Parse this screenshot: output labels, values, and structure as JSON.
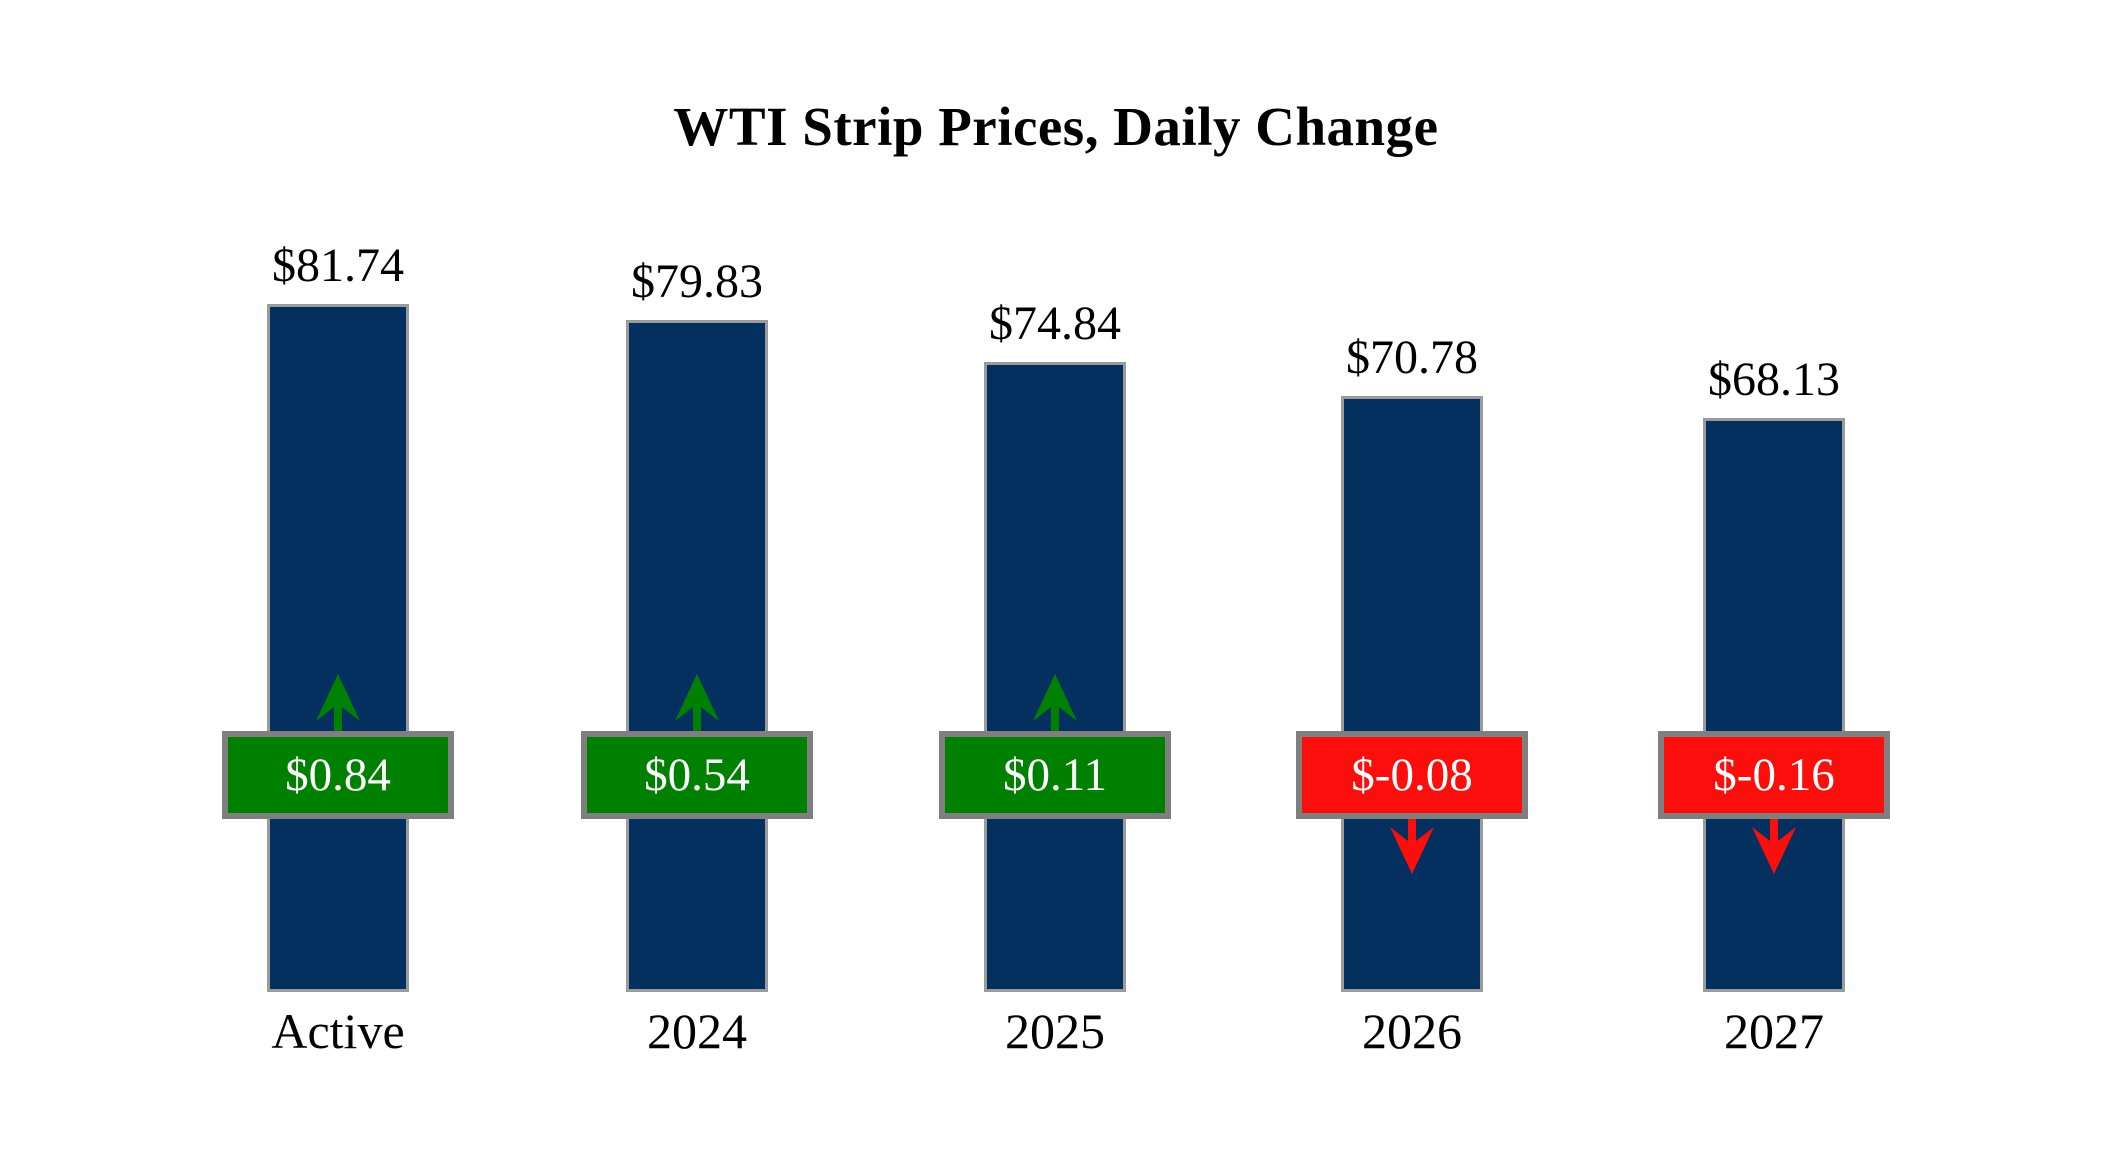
{
  "title": "WTI Strip Prices, Daily Change",
  "chart_data": {
    "type": "bar",
    "title": "WTI Strip Prices, Daily Change",
    "categories": [
      "Active",
      "2024",
      "2025",
      "2026",
      "2027"
    ],
    "series": [
      {
        "category": "Active",
        "price": 81.74,
        "price_label": "$81.74",
        "change": 0.84,
        "change_label": "$0.84",
        "direction": "up"
      },
      {
        "category": "2024",
        "price": 79.83,
        "price_label": "$79.83",
        "change": 0.54,
        "change_label": "$0.54",
        "direction": "up"
      },
      {
        "category": "2025",
        "price": 74.84,
        "price_label": "$74.84",
        "change": 0.11,
        "change_label": "$0.11",
        "direction": "up"
      },
      {
        "category": "2026",
        "price": 70.78,
        "price_label": "$70.78",
        "change": -0.08,
        "change_label": "$-0.08",
        "direction": "down"
      },
      {
        "category": "2027",
        "price": 68.13,
        "price_label": "$68.13",
        "change": -0.16,
        "change_label": "$-0.16",
        "direction": "down"
      }
    ],
    "ylim": [
      0,
      90
    ],
    "grid": false,
    "legend": "none",
    "axes_shown": false,
    "colors": {
      "bar_fill": "#04305F",
      "bar_border": "#9B9B9B",
      "up_fill": "#008000",
      "down_fill": "#FB0E0B",
      "badge_border": "#7F7F7F",
      "badge_text": "#FFFFFF",
      "label_text": "#000000",
      "background": "#FFFFFF"
    },
    "icons": {
      "up": "up-arrow-icon",
      "down": "down-arrow-icon"
    }
  }
}
